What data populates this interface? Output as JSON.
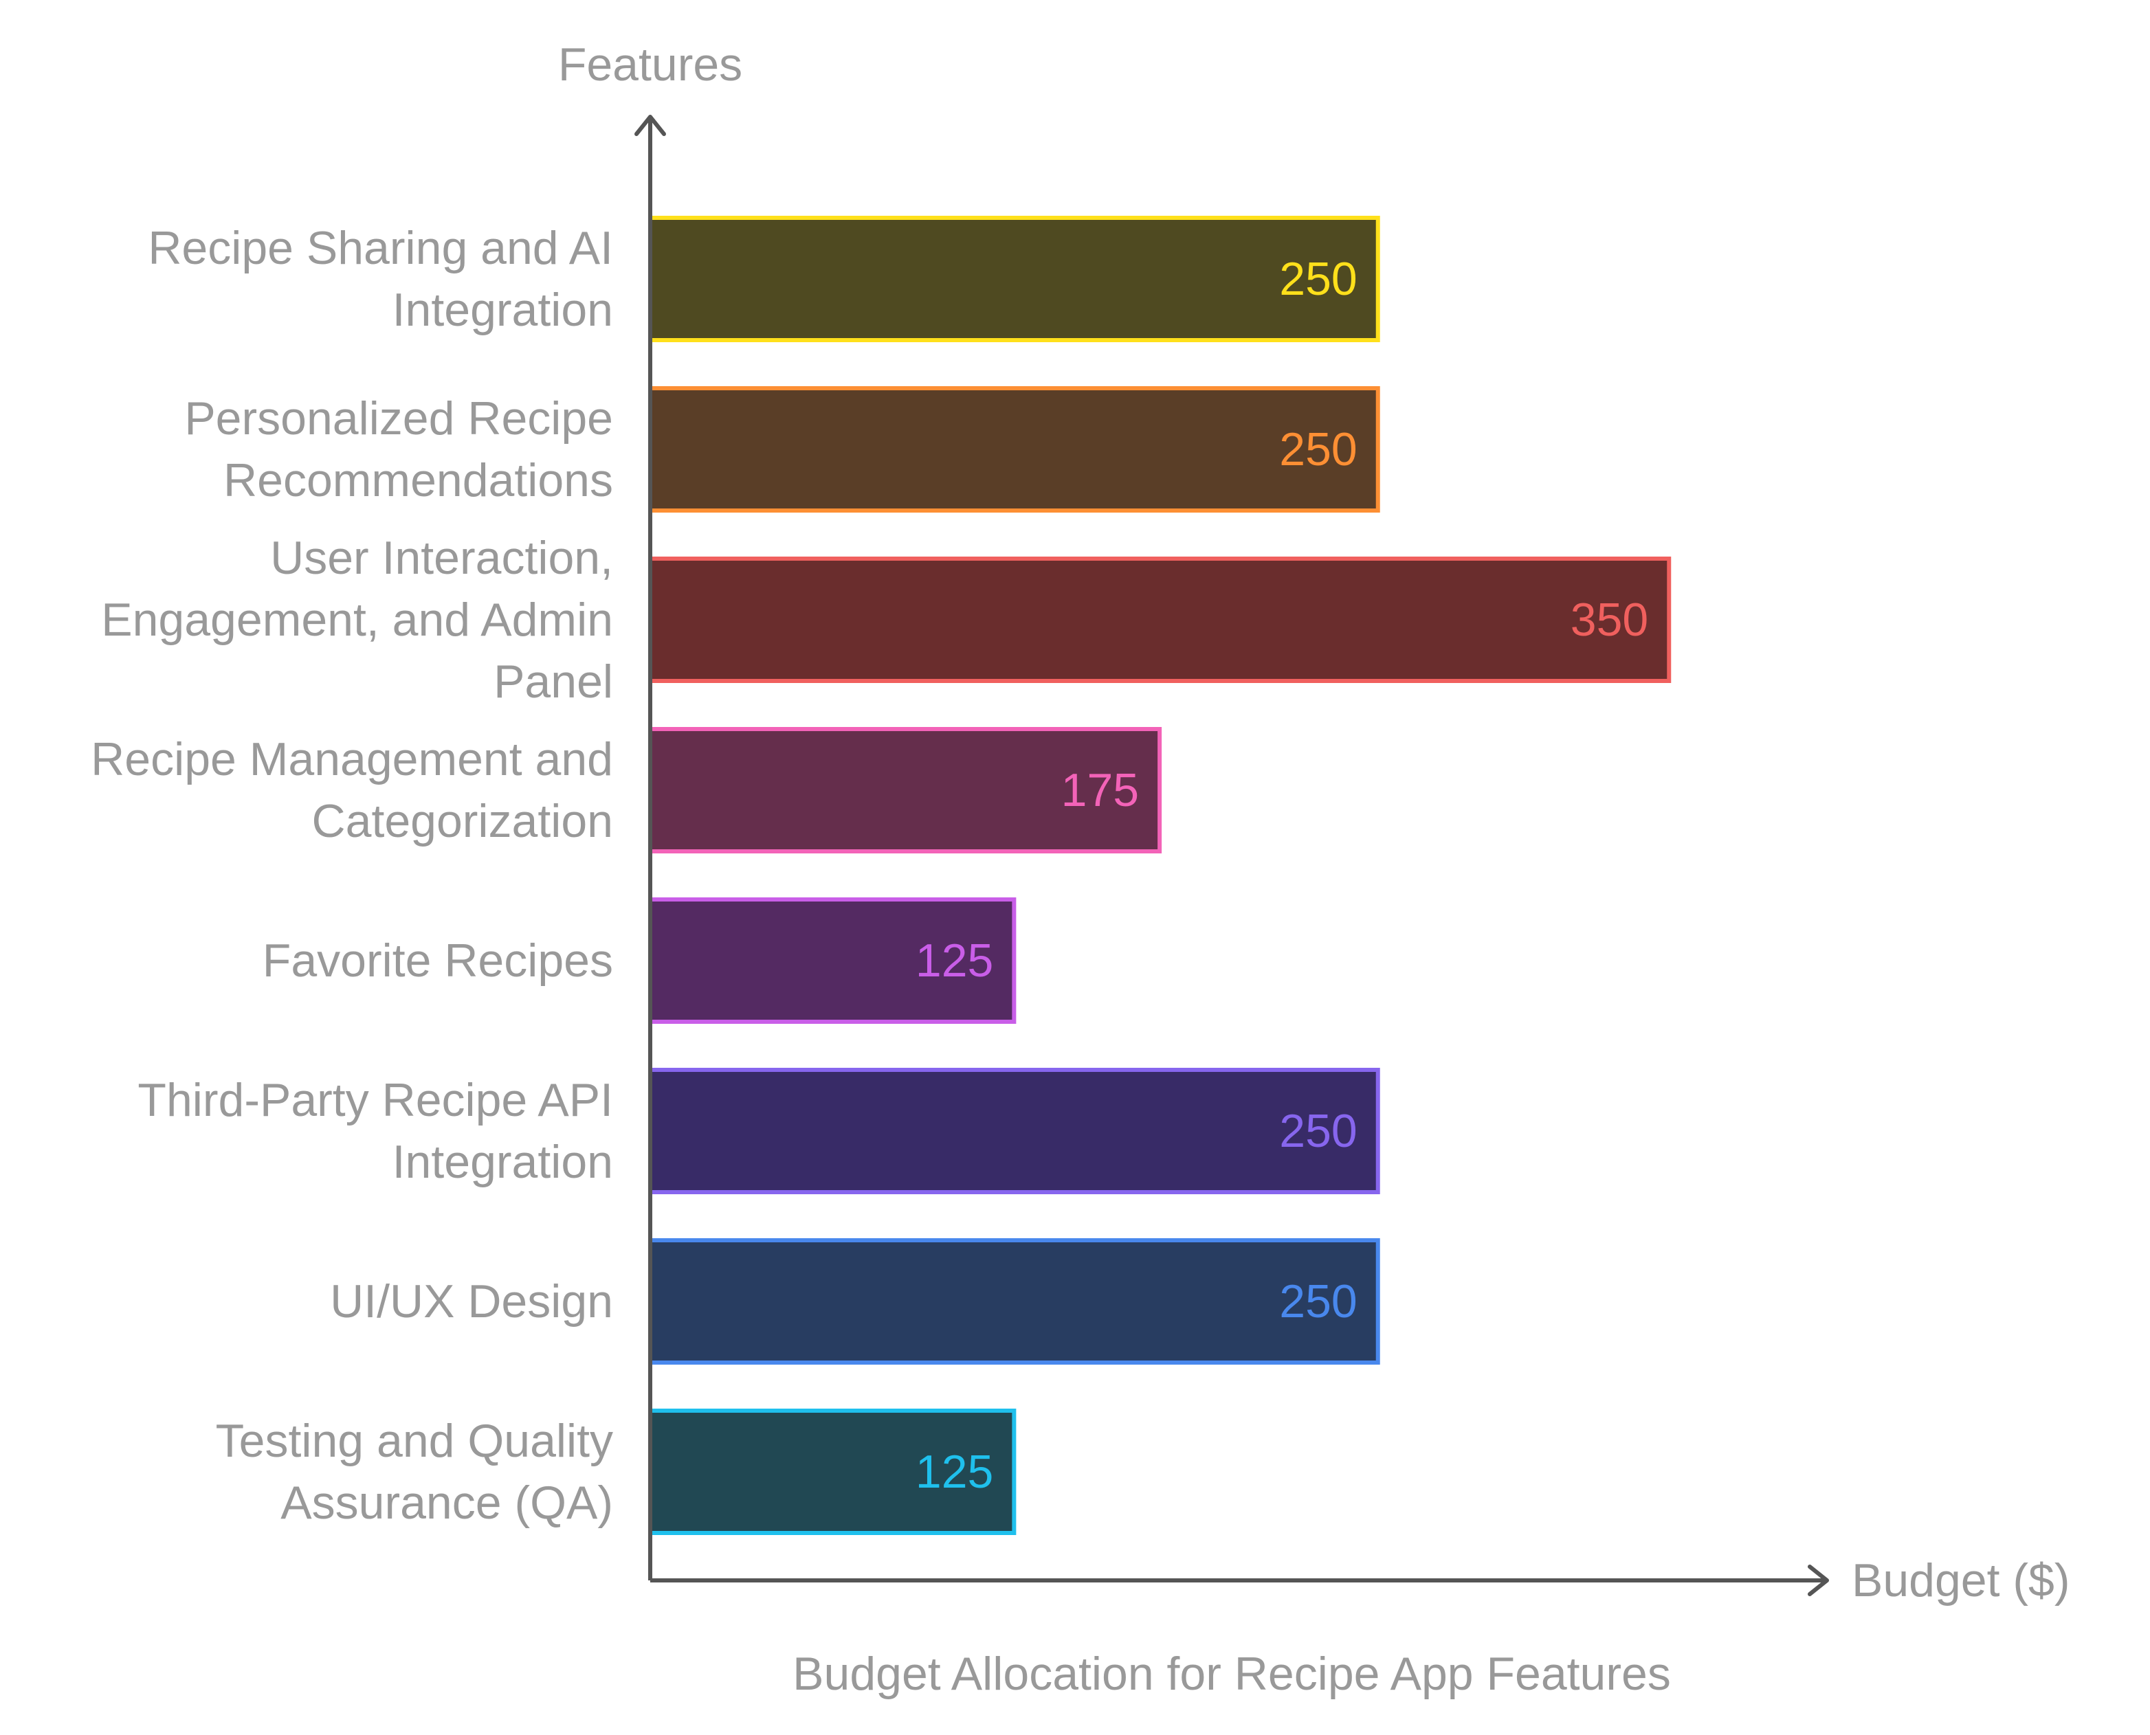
{
  "chart_data": {
    "type": "bar",
    "orientation": "horizontal",
    "title": "Budget Allocation for Recipe App Features",
    "xlabel": "Budget ($)",
    "ylabel": "Features",
    "xlim": [
      0,
      400
    ],
    "grid": false,
    "legend": "none",
    "categories": [
      [
        "Recipe Sharing and AI",
        "Integration"
      ],
      [
        "Personalized Recipe",
        "Recommendations"
      ],
      [
        "User Interaction,",
        "Engagement, and Admin",
        "Panel"
      ],
      [
        "Recipe Management and",
        "Categorization"
      ],
      [
        "Favorite Recipes"
      ],
      [
        "Third-Party Recipe API",
        "Integration"
      ],
      [
        "UI/UX Design"
      ],
      [
        "Testing and Quality",
        "Assurance (QA)"
      ]
    ],
    "values": [
      250,
      250,
      350,
      175,
      125,
      250,
      250,
      125
    ],
    "colors": {
      "fills": [
        "#4f4a21",
        "#5a3e27",
        "#6a2d2d",
        "#652e4c",
        "#542a62",
        "#382b67",
        "#283d61",
        "#214853"
      ],
      "strokes": [
        "#ffe01b",
        "#fd8f34",
        "#f0605e",
        "#f363b8",
        "#c95ee8",
        "#8766ee",
        "#4988ed",
        "#1fc0ed"
      ],
      "text": "#999999",
      "axis": "#555555",
      "background": "#ffffff"
    }
  }
}
